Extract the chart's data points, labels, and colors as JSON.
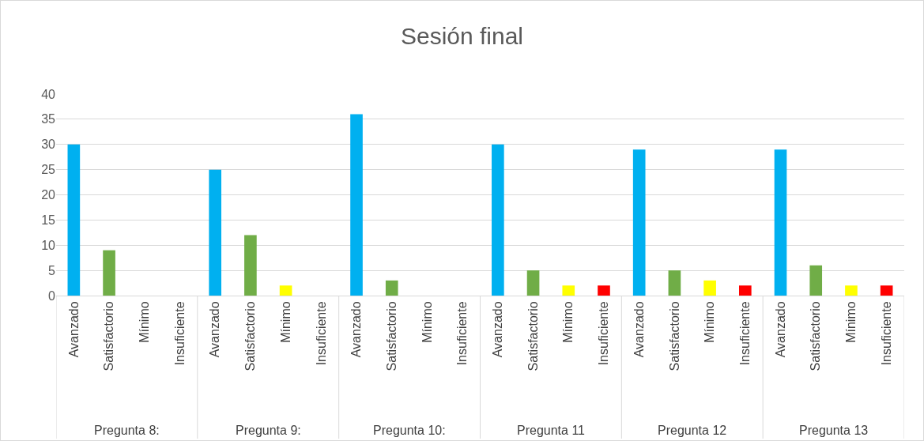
{
  "chart_data": {
    "type": "bar",
    "title": "Sesión final",
    "categories": [
      "Avanzado",
      "Satisfactorio",
      "Mínimo",
      "Insuficiente",
      "Avanzado",
      "Satisfactorio",
      "Mínimo",
      "Insuficiente",
      "Avanzado",
      "Satisfactorio",
      "Mínimo",
      "Insuficiente",
      "Avanzado",
      "Satisfactorio",
      "Mínimo",
      "Insuficiente",
      "Avanzado",
      "Satisfactorio",
      "Mínimo",
      "Insuficiente",
      "Avanzado",
      "Satisfactorio",
      "Mínimo",
      "Insuficiente"
    ],
    "values": [
      30,
      9,
      0,
      0,
      25,
      12,
      2,
      0,
      36,
      3,
      0,
      0,
      30,
      5,
      2,
      2,
      29,
      5,
      3,
      2,
      29,
      6,
      2,
      2
    ],
    "colors": [
      "#00b0f0",
      "#70ad47",
      "#ffff00",
      "#ff0000",
      "#00b0f0",
      "#70ad47",
      "#ffff00",
      "#ff0000",
      "#00b0f0",
      "#70ad47",
      "#ffff00",
      "#ff0000",
      "#00b0f0",
      "#70ad47",
      "#ffff00",
      "#ff0000",
      "#00b0f0",
      "#70ad47",
      "#ffff00",
      "#ff0000",
      "#00b0f0",
      "#70ad47",
      "#ffff00",
      "#ff0000"
    ],
    "ylim": [
      0,
      40
    ],
    "yticks": [
      0,
      5,
      10,
      15,
      20,
      25,
      30,
      35,
      40
    ],
    "grid": "y",
    "annotations": [
      "Pregunta 8:",
      "Pregunta 9:",
      "Pregunta 10:",
      "Pregunta 11",
      "Pregunta 12",
      "Pregunta 13"
    ]
  }
}
